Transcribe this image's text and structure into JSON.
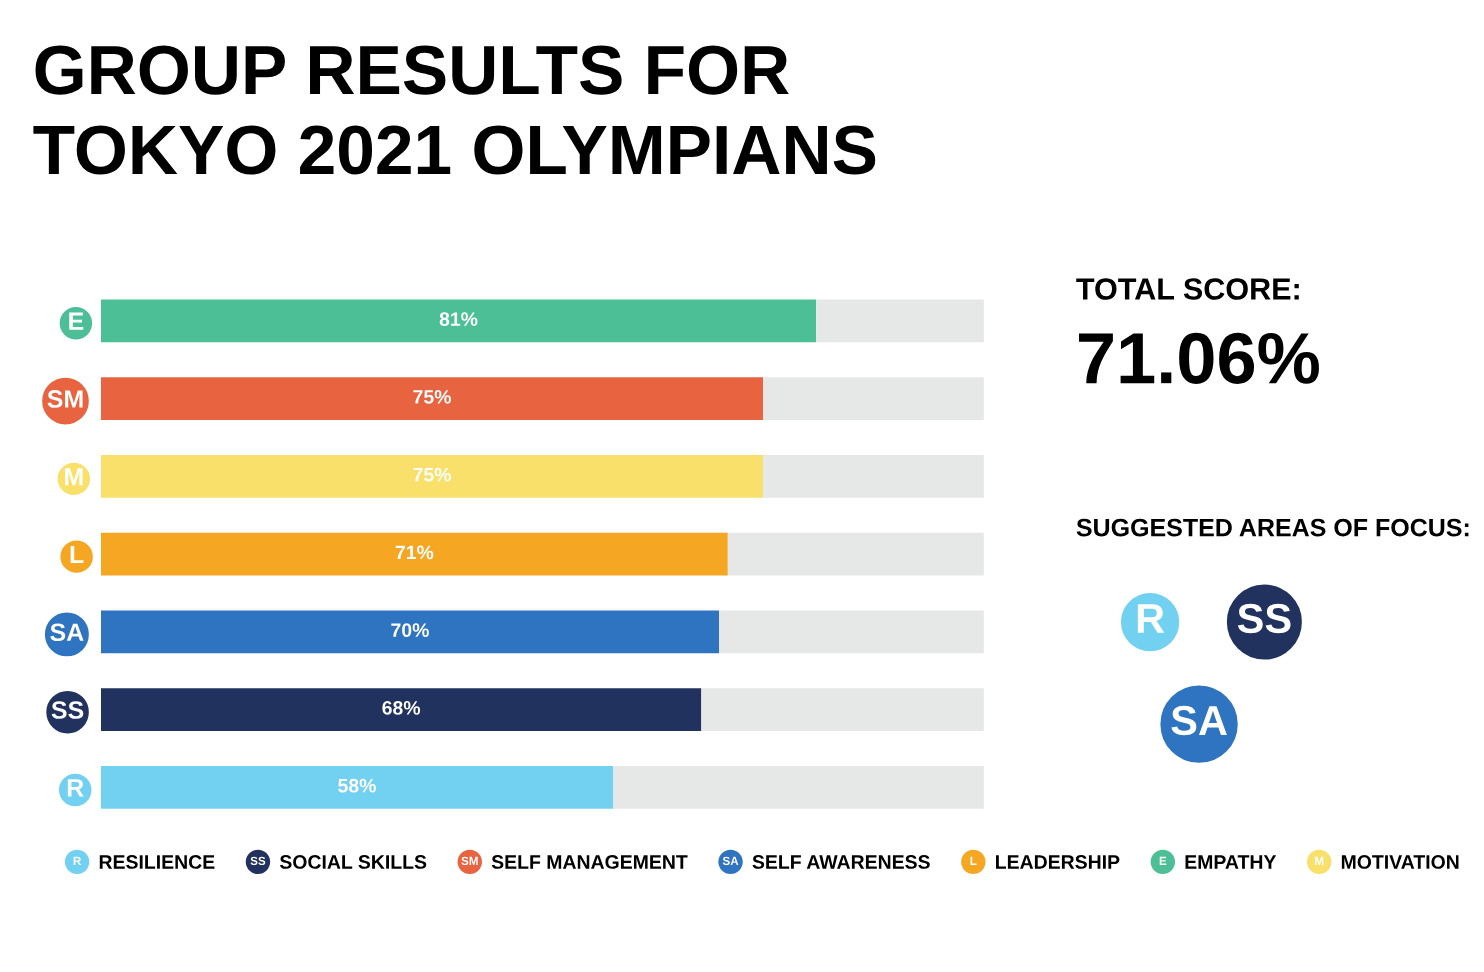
{
  "chart_data": {
    "type": "bar",
    "orientation": "horizontal",
    "stacked": true,
    "title": "GROUP RESULTS FOR\nTOKYO 2021 OLYMPIANS",
    "categories": [
      "E",
      "SM",
      "M",
      "L",
      "SA",
      "SS",
      "R"
    ],
    "xlim": [
      0,
      100
    ],
    "tick_labels": "y",
    "grid": false,
    "legend": "bottom",
    "series": [
      {
        "name": "RESILIENCE",
        "color": "#72d0f0",
        "values": [
          null,
          null,
          null,
          null,
          null,
          null,
          58
        ],
        "value_labels": [
          null,
          null,
          null,
          null,
          null,
          null,
          "58%"
        ]
      },
      {
        "name": "SOCIAL SKILLS",
        "color": "#22325e",
        "values": [
          null,
          null,
          null,
          null,
          null,
          68,
          null
        ],
        "value_labels": [
          null,
          null,
          null,
          null,
          null,
          "68%",
          null
        ]
      },
      {
        "name": "SELF MANAGEMENT",
        "color": "#e8633f",
        "values": [
          null,
          75,
          null,
          null,
          null,
          null,
          null
        ],
        "value_labels": [
          null,
          "75%",
          null,
          null,
          null,
          null,
          null
        ]
      },
      {
        "name": "SELF AWARENESS",
        "color": "#2f74c0",
        "values": [
          null,
          null,
          null,
          null,
          70,
          null,
          null
        ],
        "value_labels": [
          null,
          null,
          null,
          null,
          "70%",
          null,
          null
        ]
      },
      {
        "name": "LEADERSHIP",
        "color": "#f5a623",
        "values": [
          null,
          null,
          null,
          71,
          null,
          null,
          null
        ],
        "value_labels": [
          null,
          null,
          null,
          "71%",
          null,
          null,
          null
        ]
      },
      {
        "name": "EMPATHY",
        "color": "#4cbf96",
        "values": [
          81,
          null,
          null,
          null,
          null,
          null,
          null
        ],
        "value_labels": [
          "81%",
          null,
          null,
          null,
          null,
          null,
          null
        ]
      },
      {
        "name": "MOTIVATION",
        "color": "#f9e06a",
        "values": [
          null,
          null,
          75,
          null,
          null,
          null,
          null
        ],
        "value_labels": [
          null,
          null,
          "75%",
          null,
          null,
          null,
          null
        ]
      },
      {
        "color": "#e6e8e8",
        "values": [
          19,
          25,
          25,
          29,
          30,
          32,
          42
        ]
      }
    ],
    "annotations": [
      "TOTAL SCORE:",
      "71.06%",
      "SUGGESTED AREAS OF FOCUS:",
      "R",
      "SS",
      "SA"
    ]
  }
}
